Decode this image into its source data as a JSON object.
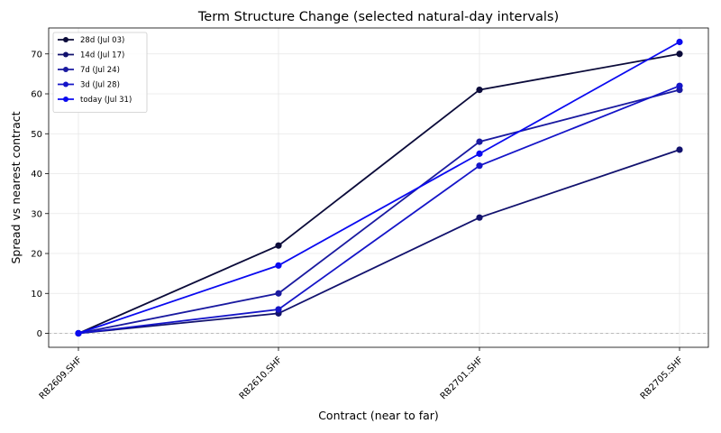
{
  "chart_data": {
    "type": "line",
    "title": "Term Structure Change (selected natural-day intervals)",
    "xlabel": "Contract (near to far)",
    "ylabel": "Spread vs nearest contract",
    "categories": [
      "RB2609.SHF",
      "RB2610.SHF",
      "RB2701.SHF",
      "RB2705.SHF"
    ],
    "ylim": [
      -3.5,
      76.5
    ],
    "yticks": [
      0,
      10,
      20,
      30,
      40,
      50,
      60,
      70
    ],
    "grid": true,
    "legend_position": "top-left",
    "zero_line": true,
    "series": [
      {
        "name": "28d (Jul 03)",
        "color": "#0b0b3a",
        "values": [
          0,
          22,
          61,
          70
        ]
      },
      {
        "name": "14d (Jul 17)",
        "color": "#12126e",
        "values": [
          0,
          5,
          29,
          46
        ]
      },
      {
        "name": "7d (Jul 24)",
        "color": "#1a1aa0",
        "values": [
          0,
          10,
          48,
          61
        ]
      },
      {
        "name": "3d (Jul 28)",
        "color": "#1515c8",
        "values": [
          0,
          6,
          42,
          62
        ]
      },
      {
        "name": "today (Jul 31)",
        "color": "#0a0af0",
        "values": [
          0,
          17,
          45,
          73
        ]
      }
    ]
  }
}
